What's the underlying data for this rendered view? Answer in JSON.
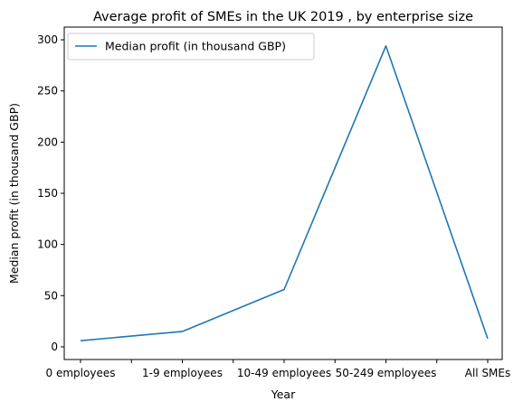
{
  "chart_data": {
    "type": "line",
    "title": "Average profit of SMEs in the UK 2019 , by enterprise size",
    "xlabel": "Year",
    "ylabel": "Median profit (in thousand GBP)",
    "categories": [
      "0 employees",
      "1-9 employees",
      "10-49 employees",
      "50-249 employees",
      "All SMEs"
    ],
    "series": [
      {
        "name": "Median profit (in thousand GBP)",
        "values": [
          6,
          15,
          56,
          294,
          8
        ],
        "color": "#1f77b4"
      }
    ],
    "ylim": [
      -12.4,
      312.4
    ],
    "yticks": [
      0,
      50,
      100,
      150,
      200,
      250,
      300
    ],
    "grid": false,
    "legend": "top-left"
  }
}
